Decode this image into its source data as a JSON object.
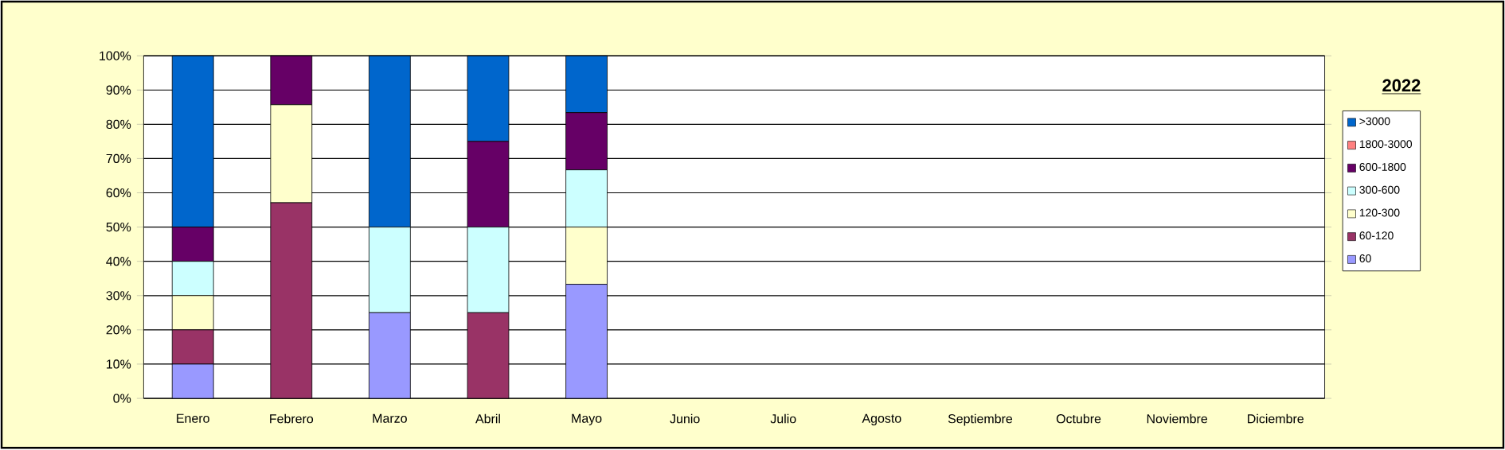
{
  "chart_data": {
    "type": "bar",
    "stacked": true,
    "legend_title": "2022",
    "legend": "right",
    "grid": "y",
    "categories": [
      "Enero",
      "Febrero",
      "Marzo",
      "Abril",
      "Mayo",
      "Junio",
      "Julio",
      "Agosto",
      "Septiembre",
      "Octubre",
      "Noviembre",
      "Diciembre"
    ],
    "ylim": [
      0,
      100
    ],
    "yticks": [
      {
        "value": 0,
        "label": "0%"
      },
      {
        "value": 10,
        "label": "10%"
      },
      {
        "value": 20,
        "label": "20%"
      },
      {
        "value": 30,
        "label": "30%"
      },
      {
        "value": 40,
        "label": "40%"
      },
      {
        "value": 50,
        "label": "50%"
      },
      {
        "value": 60,
        "label": "60%"
      },
      {
        "value": 70,
        "label": "70%"
      },
      {
        "value": 80,
        "label": "80%"
      },
      {
        "value": 90,
        "label": "90%"
      },
      {
        "value": 100,
        "label": "100%"
      }
    ],
    "series": [
      {
        "name": "60",
        "color": "#9999ff",
        "values": [
          10,
          0,
          25,
          0,
          33.3,
          0,
          0,
          0,
          0,
          0,
          0,
          0
        ]
      },
      {
        "name": "60-120",
        "color": "#993366",
        "values": [
          10,
          57.1,
          0,
          25,
          0,
          0,
          0,
          0,
          0,
          0,
          0,
          0
        ]
      },
      {
        "name": "120-300",
        "color": "#ffffcc",
        "values": [
          10,
          28.6,
          0,
          0,
          16.7,
          0,
          0,
          0,
          0,
          0,
          0,
          0
        ]
      },
      {
        "name": "300-600",
        "color": "#ccffff",
        "values": [
          10,
          0,
          25,
          25,
          16.7,
          0,
          0,
          0,
          0,
          0,
          0,
          0
        ]
      },
      {
        "name": "600-1800",
        "color": "#660066",
        "values": [
          10,
          14.3,
          0,
          25,
          16.7,
          0,
          0,
          0,
          0,
          0,
          0,
          0
        ]
      },
      {
        "name": "1800-3000",
        "color": "#ff8080",
        "values": [
          0,
          0,
          0,
          0,
          0,
          0,
          0,
          0,
          0,
          0,
          0,
          0
        ]
      },
      {
        "name": ">3000",
        "color": "#0066cc",
        "values": [
          50,
          0,
          50,
          25,
          16.6,
          0,
          0,
          0,
          0,
          0,
          0,
          0
        ]
      }
    ]
  }
}
